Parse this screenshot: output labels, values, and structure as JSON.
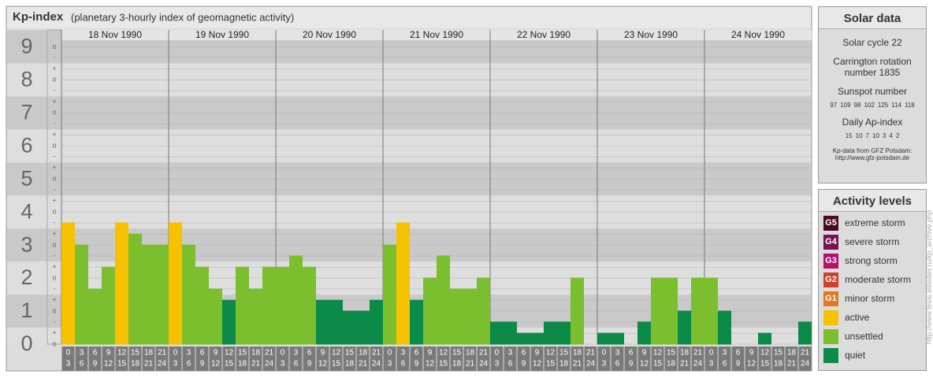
{
  "chart_data": {
    "type": "bar",
    "title": "Kp-index",
    "subtitle": "(planetary 3-hourly index of geomagnetic activity)",
    "days": [
      "18 Nov 1990",
      "19 Nov 1990",
      "20 Nov 1990",
      "21 Nov 1990",
      "22 Nov 1990",
      "23 Nov 1990",
      "24 Nov 1990"
    ],
    "hour_starts": [
      0,
      3,
      6,
      9,
      12,
      15,
      18,
      21
    ],
    "hour_ends": [
      3,
      6,
      9,
      12,
      15,
      18,
      21,
      24
    ],
    "values": [
      3.67,
      3,
      1.67,
      2.33,
      3.67,
      3.33,
      3,
      3,
      3.67,
      3,
      2.33,
      1.67,
      1.33,
      2.33,
      1.67,
      2.33,
      2.33,
      2.67,
      2.33,
      1.33,
      1.33,
      1,
      1,
      1.33,
      3,
      3.67,
      1.33,
      2,
      2.67,
      1.67,
      1.67,
      2,
      0.67,
      0.67,
      0.33,
      0.33,
      0.67,
      0.67,
      2,
      0,
      0.33,
      0.33,
      0,
      0.67,
      2,
      2,
      1,
      2,
      2,
      1,
      0,
      0,
      0.33,
      0,
      0,
      0.67
    ],
    "colors": [
      "#f6c200",
      "#7bbf2e",
      "#7bbf2e",
      "#7bbf2e",
      "#f6c200",
      "#7bbf2e",
      "#7bbf2e",
      "#7bbf2e",
      "#f6c200",
      "#7bbf2e",
      "#7bbf2e",
      "#7bbf2e",
      "#0c8a48",
      "#7bbf2e",
      "#7bbf2e",
      "#7bbf2e",
      "#7bbf2e",
      "#7bbf2e",
      "#7bbf2e",
      "#0c8a48",
      "#0c8a48",
      "#0c8a48",
      "#0c8a48",
      "#0c8a48",
      "#7bbf2e",
      "#f6c200",
      "#0c8a48",
      "#7bbf2e",
      "#7bbf2e",
      "#7bbf2e",
      "#7bbf2e",
      "#7bbf2e",
      "#0c8a48",
      "#0c8a48",
      "#0c8a48",
      "#0c8a48",
      "#0c8a48",
      "#0c8a48",
      "#7bbf2e",
      "#0c8a48",
      "#0c8a48",
      "#0c8a48",
      "#0c8a48",
      "#0c8a48",
      "#7bbf2e",
      "#7bbf2e",
      "#0c8a48",
      "#7bbf2e",
      "#7bbf2e",
      "#0c8a48",
      "#0c8a48",
      "#0c8a48",
      "#0c8a48",
      "#0c8a48",
      "#0c8a48",
      "#0c8a48"
    ],
    "ylim": [
      0,
      9.2
    ],
    "yticks": [
      0,
      1,
      2,
      3,
      4,
      5,
      6,
      7,
      8,
      9
    ],
    "yminor_ticks": [
      {
        "value": 0,
        "label": "o"
      },
      {
        "value": 0.33,
        "label": "+"
      },
      {
        "value": 0.67,
        "label": "-"
      },
      {
        "value": 1,
        "label": "o"
      },
      {
        "value": 1.33,
        "label": "+"
      },
      {
        "value": 1.67,
        "label": "-"
      },
      {
        "value": 2,
        "label": "o"
      },
      {
        "value": 2.33,
        "label": "+"
      },
      {
        "value": 2.67,
        "label": "-"
      },
      {
        "value": 3,
        "label": "o"
      },
      {
        "value": 3.33,
        "label": "+"
      },
      {
        "value": 3.67,
        "label": "-"
      },
      {
        "value": 4,
        "label": "o"
      },
      {
        "value": 4.33,
        "label": "+"
      },
      {
        "value": 4.67,
        "label": "-"
      },
      {
        "value": 5,
        "label": "o"
      },
      {
        "value": 5.33,
        "label": "+"
      },
      {
        "value": 5.67,
        "label": "-"
      },
      {
        "value": 6,
        "label": "o"
      },
      {
        "value": 6.33,
        "label": "+"
      },
      {
        "value": 6.67,
        "label": "-"
      },
      {
        "value": 7,
        "label": "o"
      },
      {
        "value": 7.33,
        "label": "+"
      },
      {
        "value": 7.67,
        "label": "-"
      },
      {
        "value": 8,
        "label": "o"
      },
      {
        "value": 8.33,
        "label": "+"
      },
      {
        "value": 8.67,
        "label": "-"
      },
      {
        "value": 9,
        "label": "o"
      }
    ],
    "grid": true
  },
  "solar_data": {
    "title": "Solar data",
    "cycle": "Solar cycle 22",
    "carrington": "Carrington rotation number 1835",
    "sunspot_title": "Sunspot number",
    "sunspot": [
      97,
      109,
      98,
      102,
      125,
      114,
      118
    ],
    "ap_title": "Daily Ap-index",
    "ap": [
      15,
      10,
      7,
      10,
      3,
      4,
      2
    ],
    "source": "Kp-data from GFZ Potsdam:",
    "source_url": "http://www.gfz-potsdam.de"
  },
  "activity_levels": {
    "title": "Activity levels",
    "items": [
      {
        "badge": "G5",
        "label": "extreme storm",
        "color": "#4a0a24"
      },
      {
        "badge": "G4",
        "label": "severe storm",
        "color": "#7a1050"
      },
      {
        "badge": "G3",
        "label": "strong storm",
        "color": "#b5106e"
      },
      {
        "badge": "G2",
        "label": "moderate storm",
        "color": "#d2402a"
      },
      {
        "badge": "G1",
        "label": "minor storm",
        "color": "#e07a1a"
      },
      {
        "label": "active",
        "color": "#f6c200"
      },
      {
        "label": "unsettled",
        "color": "#7bbf2e"
      },
      {
        "label": "quiet",
        "color": "#0c8a48"
      }
    ]
  },
  "site_url": "http://www.tesis.lebedev.ru/kp_archive.php"
}
